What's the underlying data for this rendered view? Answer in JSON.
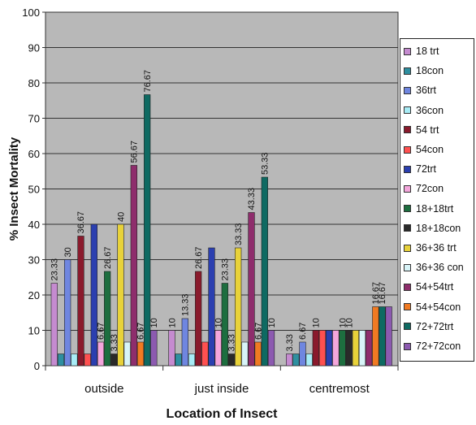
{
  "chart_data": {
    "type": "bar",
    "title": "",
    "xlabel": "Location of Insect",
    "ylabel": "% Insect Mortality",
    "ylim": [
      0,
      100
    ],
    "yticks": [
      "0",
      "10",
      "20",
      "30",
      "40",
      "50",
      "60",
      "70",
      "80",
      "90",
      "100"
    ],
    "grid": true,
    "legend_position": "right",
    "categories": [
      "outside",
      "just inside",
      "centremost"
    ],
    "series": [
      {
        "name": "18 trt",
        "color": "#c58bd0",
        "values": [
          23.33,
          10,
          3.33
        ],
        "labels": [
          "23.33",
          "10",
          "3.33"
        ]
      },
      {
        "name": "18con",
        "color": "#2e8fa0",
        "values": [
          3.33,
          3.33,
          3.33
        ],
        "labels": [
          "",
          "",
          ""
        ]
      },
      {
        "name": "36trt",
        "color": "#6f86e0",
        "values": [
          30,
          13.33,
          6.67
        ],
        "labels": [
          "30",
          "13.33",
          "6.67"
        ]
      },
      {
        "name": "36con",
        "color": "#a8ecf6",
        "values": [
          3.33,
          3.33,
          3.33
        ],
        "labels": [
          "",
          "",
          ""
        ]
      },
      {
        "name": "54 trt",
        "color": "#8a1a2c",
        "values": [
          36.67,
          26.67,
          10
        ],
        "labels": [
          "36.67",
          "26.67",
          "10"
        ]
      },
      {
        "name": "54con",
        "color": "#ff5050",
        "values": [
          3.33,
          6.67,
          10
        ],
        "labels": [
          "",
          "",
          ""
        ]
      },
      {
        "name": "72trt",
        "color": "#2b3fb0",
        "values": [
          40,
          33.33,
          10
        ],
        "labels": [
          "",
          "",
          ""
        ]
      },
      {
        "name": "72con",
        "color": "#f4a6dc",
        "values": [
          6.67,
          10,
          10
        ],
        "labels": [
          "6.67",
          "10",
          ""
        ]
      },
      {
        "name": "18+18trt",
        "color": "#1d6e3f",
        "values": [
          26.67,
          23.33,
          10
        ],
        "labels": [
          "26.67",
          "23.33",
          "10"
        ]
      },
      {
        "name": "18+18con",
        "color": "#2a2a2a",
        "values": [
          3.33,
          3.33,
          10
        ],
        "labels": [
          "3.33",
          "3.33",
          "10"
        ]
      },
      {
        "name": "36+36 trt",
        "color": "#e8d23a",
        "values": [
          40,
          33.33,
          10
        ],
        "labels": [
          "40",
          "33.33",
          ""
        ]
      },
      {
        "name": "36+36 con",
        "color": "#d8f4f8",
        "values": [
          6.67,
          6.67,
          10
        ],
        "labels": [
          "",
          "",
          ""
        ]
      },
      {
        "name": "54+54trt",
        "color": "#8e2d6c",
        "values": [
          56.67,
          43.33,
          10
        ],
        "labels": [
          "56.67",
          "43.33",
          ""
        ]
      },
      {
        "name": "54+54con",
        "color": "#f07a22",
        "values": [
          6.67,
          6.67,
          16.67
        ],
        "labels": [
          "6.67",
          "6.67",
          "16.67"
        ]
      },
      {
        "name": "72+72trt",
        "color": "#0e6a62",
        "values": [
          76.67,
          53.33,
          16.67
        ],
        "labels": [
          "76.67",
          "53.33",
          "16.67"
        ]
      },
      {
        "name": "72+72con",
        "color": "#8c5ab0",
        "values": [
          10,
          10,
          16.67
        ],
        "labels": [
          "10",
          "10",
          ""
        ]
      }
    ]
  }
}
